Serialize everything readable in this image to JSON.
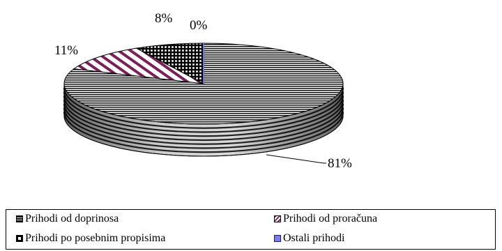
{
  "chart_data": {
    "type": "pie",
    "three_d": true,
    "categories": [
      "Prihodi od doprinosa",
      "Prihodi od proračuna",
      "Prihodi po posebnim propisima",
      "Ostali prihodi"
    ],
    "values": [
      81,
      11,
      8,
      0
    ],
    "value_labels": [
      "81%",
      "11%",
      "8%",
      "0%"
    ],
    "legend_placement": "bottom",
    "fill_styles": [
      "horizontal-stripes",
      "diagonal-stripes-purple",
      "grid-black",
      "blue"
    ],
    "colors": [
      "#000000",
      "#7a1f58",
      "#000000",
      "#6f70ee"
    ]
  },
  "legend": [
    {
      "label": "Prihodi od doprinosa",
      "icon": "horizontal-stripes-square-icon"
    },
    {
      "label": "Prihodi od proračuna",
      "icon": "diagonal-stripes-square-icon"
    },
    {
      "label": "Prihodi po posebnim propisima",
      "icon": "grid-square-icon"
    },
    {
      "label": "Ostali prihodi",
      "icon": "blue-square-icon"
    }
  ]
}
